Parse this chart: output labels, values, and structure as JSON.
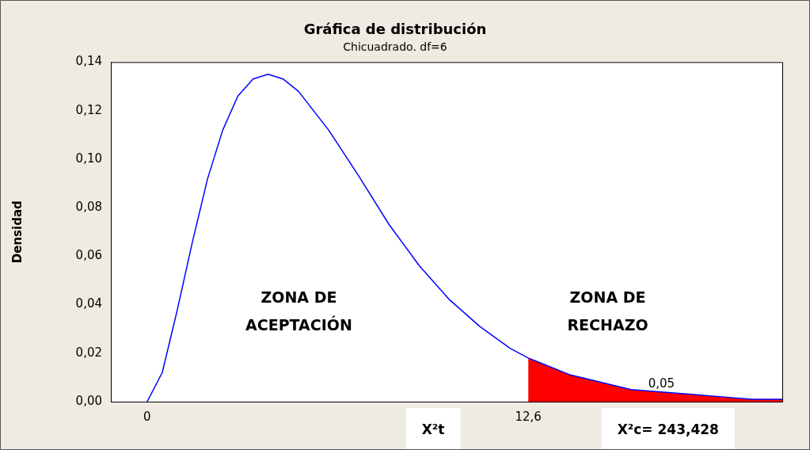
{
  "chart_data": {
    "type": "line",
    "title": "Gráfica de distribución",
    "subtitle": "Chicuadrado. df=6",
    "ylabel": "Densidad",
    "series": [
      {
        "color": "#0000ff",
        "x": [
          0,
          0.5,
          1,
          1.5,
          2,
          2.5,
          3,
          3.5,
          4,
          4.5,
          5,
          6,
          7,
          8,
          9,
          10,
          11,
          12,
          12.6,
          13,
          14,
          15,
          16,
          17,
          18,
          19,
          20,
          21
        ],
        "values": [
          0,
          0.012,
          0.038,
          0.066,
          0.092,
          0.112,
          0.126,
          0.133,
          0.135,
          0.133,
          0.128,
          0.112,
          0.093,
          0.073,
          0.056,
          0.042,
          0.031,
          0.022,
          0.018,
          0.016,
          0.011,
          0.008,
          0.005,
          0.004,
          0.003,
          0.002,
          0.001,
          0.001
        ]
      },
      {
        "type": "area",
        "color": "#ff0000",
        "x": [
          12.6,
          13,
          14,
          15,
          16,
          17,
          18,
          19,
          20,
          21
        ],
        "values": [
          0.018,
          0.016,
          0.011,
          0.008,
          0.005,
          0.004,
          0.003,
          0.002,
          0.001,
          0.001
        ]
      }
    ],
    "xlim": [
      -1.2,
      21
    ],
    "xticks": [
      0,
      {
        "value": 12.6,
        "label": "12,6"
      }
    ],
    "ylim": [
      0,
      0.14
    ],
    "yticks": [
      {
        "value": 0,
        "label": "0,00"
      },
      {
        "value": 0.02,
        "label": "0,02"
      },
      {
        "value": 0.04,
        "label": "0,04"
      },
      {
        "value": 0.06,
        "label": "0,06"
      },
      {
        "value": 0.08,
        "label": "0,08"
      },
      {
        "value": 0.1,
        "label": "0,10"
      },
      {
        "value": 0.12,
        "label": "0,12"
      },
      {
        "value": 0.14,
        "label": "0,14"
      }
    ],
    "grid": false,
    "legend": false,
    "annotations": [
      "ZONA DE ACEPTACIÓN",
      "ZONA DE RECHAZO",
      "0,05",
      "X²t",
      "X²c= 243,428"
    ]
  }
}
